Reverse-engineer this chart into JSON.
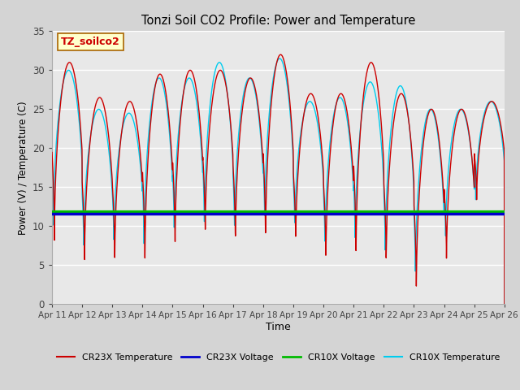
{
  "title": "Tonzi Soil CO2 Profile: Power and Temperature",
  "xlabel": "Time",
  "ylabel": "Power (V) / Temperature (C)",
  "ylim": [
    0,
    35
  ],
  "xlim": [
    0,
    15
  ],
  "annotation_text": "TZ_soilco2",
  "annotation_color": "#cc0000",
  "annotation_bg": "#ffffcc",
  "annotation_border": "#aa6600",
  "cr23x_voltage_value": 11.55,
  "cr10x_voltage_value": 11.85,
  "cr23x_temp_color": "#cc0000",
  "cr23x_voltage_color": "#0000cc",
  "cr10x_voltage_color": "#00bb00",
  "cr10x_temp_color": "#00ccee",
  "fig_bg_color": "#d4d4d4",
  "plot_bg_color": "#e8e8e8",
  "legend_labels": [
    "CR23X Temperature",
    "CR23X Voltage",
    "CR10X Voltage",
    "CR10X Temperature"
  ],
  "xtick_labels": [
    "Apr 11",
    "Apr 12",
    "Apr 13",
    "Apr 14",
    "Apr 15",
    "Apr 16",
    "Apr 17",
    "Apr 18",
    "Apr 19",
    "Apr 20",
    "Apr 21",
    "Apr 22",
    "Apr 23",
    "Apr 24",
    "Apr 25",
    "Apr 26"
  ],
  "ytick_values": [
    0,
    5,
    10,
    15,
    20,
    25,
    30,
    35
  ],
  "grid_color": "#ffffff",
  "num_days": 15,
  "cr23x_peaks": [
    31,
    26.5,
    26,
    29.5,
    30,
    30,
    29,
    32,
    27,
    27,
    31,
    27,
    25,
    25,
    26
  ],
  "cr23x_troughs": [
    8,
    5,
    5,
    4.5,
    6.5,
    8,
    7,
    7,
    7,
    4.5,
    5,
    4.5,
    1,
    5,
    13
  ],
  "cr10x_peaks": [
    30,
    25,
    24.5,
    29,
    29,
    31,
    29,
    31.5,
    26,
    26.5,
    28.5,
    28,
    25,
    25,
    26
  ],
  "cr10x_troughs": [
    10,
    7,
    7.5,
    6.5,
    8.5,
    9,
    8.5,
    9.5,
    9,
    6.5,
    7,
    5.5,
    3,
    8,
    13
  ]
}
